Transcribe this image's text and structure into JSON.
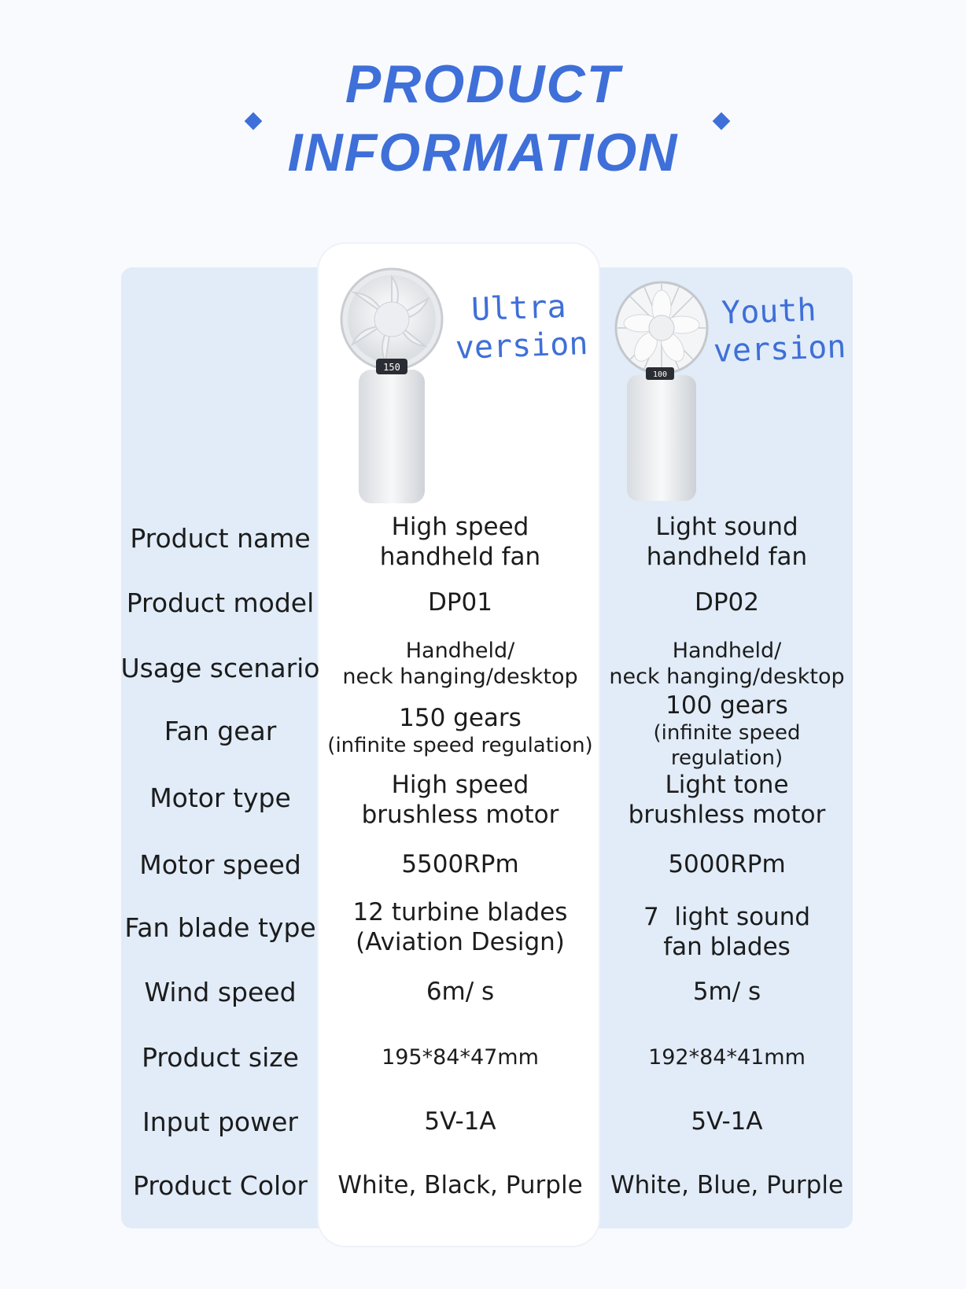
{
  "header": {
    "line1": "PRODUCT",
    "line2": "INFORMATION"
  },
  "versions": {
    "ultra": {
      "line1": "Ultra",
      "line2": "version",
      "display": "150"
    },
    "youth": {
      "line1": "Youth",
      "line2": "version",
      "display": "100"
    }
  },
  "rows": [
    {
      "label": "Product name",
      "a": [
        "High speed",
        "handheld fan"
      ],
      "b": [
        "Light sound",
        "handheld fan"
      ]
    },
    {
      "label": "Product model",
      "a": [
        "DP01"
      ],
      "b": [
        "DP02"
      ]
    },
    {
      "label": "Usage scenario",
      "a": [
        "Handheld/",
        "neck hanging/desktop"
      ],
      "b": [
        "Handheld/",
        "neck hanging/desktop"
      ]
    },
    {
      "label": "Fan gear",
      "a": [
        "150 gears",
        "(infinite speed regulation)"
      ],
      "b": [
        "100 gears",
        "(infinite speed regulation)"
      ]
    },
    {
      "label": "Motor type",
      "a": [
        "High speed",
        "brushless motor"
      ],
      "b": [
        "Light tone",
        "brushless motor"
      ]
    },
    {
      "label": "Motor speed",
      "a": [
        "5500RPm"
      ],
      "b": [
        "5000RPm"
      ]
    },
    {
      "label": "Fan blade type",
      "a": [
        "12 turbine blades",
        "(Aviation Design)"
      ],
      "b": [
        "7  light sound",
        "fan blades"
      ]
    },
    {
      "label": "Wind speed",
      "a": [
        "6m/ s"
      ],
      "b": [
        "5m/ s"
      ]
    },
    {
      "label": "Product size",
      "a": [
        "195*84*47mm"
      ],
      "b": [
        "192*84*41mm"
      ]
    },
    {
      "label": "Input power",
      "a": [
        "5V-1A"
      ],
      "b": [
        "5V-1A"
      ]
    },
    {
      "label": "Product Color",
      "a": [
        "White, Black, Purple"
      ],
      "b": [
        "White, Blue, Purple"
      ]
    }
  ],
  "colors": {
    "accent": "#3f6fd8",
    "panel": "#e1ecf8",
    "text": "#1c1c1c"
  }
}
